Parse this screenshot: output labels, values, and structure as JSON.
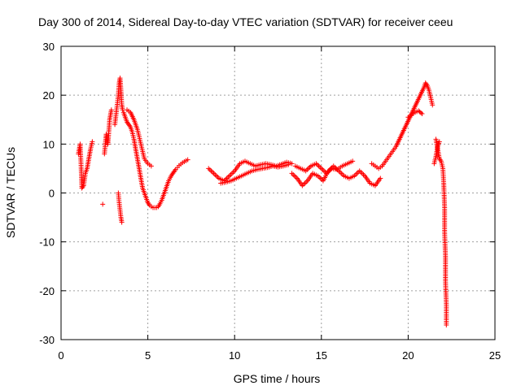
{
  "chart_data": {
    "type": "scatter",
    "title": "Day 300 of 2014, Sidereal Day-to-day VTEC variation (SDTVAR) for receiver ceeu",
    "xlabel": "GPS time / hours",
    "ylabel": "SDTVAR / TECUs",
    "xlim": [
      0,
      25
    ],
    "ylim": [
      -30,
      30
    ],
    "xticks": [
      0,
      5,
      10,
      15,
      20,
      25
    ],
    "yticks": [
      -30,
      -20,
      -10,
      0,
      10,
      20,
      30
    ],
    "xtick_labels": [
      "0",
      "5",
      "10",
      "15",
      "20",
      "25"
    ],
    "ytick_labels": [
      "-30",
      "-20",
      "-10",
      "0",
      "10",
      "20",
      "30"
    ],
    "grid": true,
    "marker": "+",
    "color": "#ff0000",
    "series": [
      {
        "name": "SDTVAR",
        "segments": [
          {
            "x": [
              1.0,
              1.1,
              1.15,
              1.2,
              1.3,
              1.4,
              1.5,
              1.6,
              1.7,
              1.8
            ],
            "y": [
              8.0,
              10.0,
              6.0,
              1.0,
              1.5,
              4.0,
              5.0,
              7.0,
              9.0,
              10.5
            ]
          },
          {
            "x": [
              2.5,
              2.6,
              2.7,
              2.8,
              2.9
            ],
            "y": [
              8.0,
              12.0,
              10.0,
              15.0,
              17.0
            ]
          },
          {
            "x": [
              3.1,
              3.2,
              3.3,
              3.35,
              3.4,
              3.45,
              3.5,
              3.55,
              3.6,
              3.7,
              3.8,
              3.9,
              4.0,
              4.1,
              4.2,
              4.3,
              4.4,
              4.5,
              4.6,
              4.7,
              4.8,
              4.9,
              5.0,
              5.1,
              5.2,
              5.3,
              5.4,
              5.5,
              5.6,
              5.7,
              5.8,
              5.9,
              6.0,
              6.1,
              6.2,
              6.3,
              6.4,
              6.5,
              6.6,
              6.7,
              6.8,
              6.9,
              7.0,
              7.1,
              7.2,
              7.3
            ],
            "y": [
              14.0,
              17.0,
              20.0,
              22.5,
              23.5,
              21.0,
              18.0,
              17.0,
              16.5,
              15.5,
              14.5,
              14.0,
              13.5,
              12.5,
              11.0,
              9.0,
              7.0,
              5.0,
              3.0,
              1.0,
              0.0,
              -1.0,
              -2.0,
              -2.5,
              -2.8,
              -3.0,
              -3.0,
              -3.0,
              -2.8,
              -2.2,
              -1.5,
              -0.5,
              0.5,
              1.5,
              2.5,
              3.2,
              3.8,
              4.3,
              4.8,
              5.2,
              5.6,
              5.9,
              6.2,
              6.4,
              6.6,
              6.8
            ]
          },
          {
            "x": [
              3.3,
              3.35,
              3.4,
              3.45,
              3.5
            ],
            "y": [
              0.0,
              -2.0,
              -3.5,
              -5.0,
              -6.0
            ]
          },
          {
            "x": [
              3.8,
              4.0,
              4.2,
              4.4,
              4.6,
              4.8,
              5.0,
              5.2
            ],
            "y": [
              17.0,
              16.5,
              15.0,
              13.0,
              10.0,
              7.0,
              6.0,
              5.5
            ]
          },
          {
            "x": [
              2.4
            ],
            "y": [
              -2.3
            ]
          },
          {
            "x": [
              8.5,
              8.8,
              9.1,
              9.4,
              9.7,
              10.0,
              10.3,
              10.6,
              10.9,
              11.2,
              11.5,
              11.8,
              12.1,
              12.4,
              12.7,
              13.0,
              13.3
            ],
            "y": [
              5.0,
              4.0,
              3.0,
              2.5,
              3.5,
              4.5,
              6.0,
              6.5,
              6.0,
              5.5,
              5.8,
              6.0,
              5.8,
              5.5,
              5.9,
              6.3,
              6.0
            ]
          },
          {
            "x": [
              9.2,
              9.5,
              9.8,
              10.1,
              10.4,
              10.7,
              11.0,
              11.3,
              11.6,
              11.9,
              12.2,
              12.5,
              12.8,
              13.1
            ],
            "y": [
              2.0,
              2.2,
              2.5,
              3.0,
              3.5,
              4.0,
              4.5,
              4.8,
              5.0,
              5.2,
              5.5,
              5.3,
              5.5,
              5.8
            ]
          },
          {
            "x": [
              13.3,
              13.6,
              13.9,
              14.2,
              14.5,
              14.8,
              15.1,
              15.4,
              15.7,
              16.0,
              16.3,
              16.6,
              16.9,
              17.2,
              17.5,
              17.8,
              18.1,
              18.4
            ],
            "y": [
              4.0,
              3.0,
              1.5,
              2.5,
              4.0,
              3.5,
              2.5,
              4.5,
              5.5,
              4.5,
              3.5,
              3.0,
              3.5,
              4.5,
              3.5,
              2.0,
              1.5,
              3.0
            ]
          },
          {
            "x": [
              13.5,
              13.8,
              14.1,
              14.4,
              14.7,
              15.0,
              15.3,
              15.6,
              15.9,
              16.2,
              16.5,
              16.8
            ],
            "y": [
              5.5,
              5.0,
              4.5,
              5.5,
              6.0,
              5.0,
              4.0,
              5.0,
              4.8,
              5.5,
              6.0,
              6.5
            ]
          },
          {
            "x": [
              17.9,
              18.1,
              18.3,
              18.5,
              18.7,
              18.9,
              19.1,
              19.3,
              19.5,
              19.7,
              19.9,
              20.1,
              20.3,
              20.5,
              20.7,
              20.9,
              21.0,
              21.1,
              21.2,
              21.3,
              21.4
            ],
            "y": [
              6.0,
              5.5,
              5.0,
              5.5,
              6.5,
              7.5,
              8.5,
              9.5,
              11.0,
              12.5,
              14.0,
              15.5,
              17.0,
              18.5,
              20.0,
              21.5,
              22.5,
              22.0,
              21.0,
              19.5,
              18.0
            ]
          },
          {
            "x": [
              20.0,
              20.2,
              20.4,
              20.6,
              20.8
            ],
            "y": [
              15.5,
              16.0,
              16.5,
              16.8,
              16.2
            ]
          },
          {
            "x": [
              21.6,
              21.7,
              21.8,
              21.9,
              22.0,
              22.05,
              22.1,
              22.1,
              22.15,
              22.15,
              22.2,
              22.2
            ],
            "y": [
              11.0,
              9.0,
              7.0,
              6.5,
              5.0,
              2.0,
              -3.0,
              -8.0,
              -13.0,
              -18.0,
              -23.0,
              -27.0
            ]
          },
          {
            "x": [
              21.5,
              21.6,
              21.7,
              21.8
            ],
            "y": [
              6.0,
              7.5,
              9.5,
              10.5
            ]
          }
        ]
      }
    ]
  }
}
